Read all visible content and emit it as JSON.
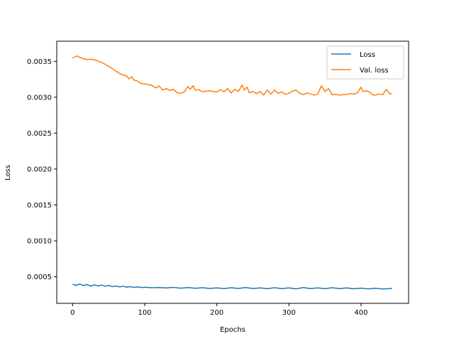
{
  "chart_data": {
    "type": "line",
    "title": "",
    "xlabel": "Epochs",
    "ylabel": "Loss",
    "xlim": [
      -22,
      466
    ],
    "ylim": [
      0.00013,
      0.00378
    ],
    "xticks": [
      0,
      100,
      200,
      300,
      400
    ],
    "xtick_labels": [
      "0",
      "100",
      "200",
      "300",
      "400"
    ],
    "yticks": [
      0.0005,
      0.001,
      0.0015,
      0.002,
      0.0025,
      0.003,
      0.0035
    ],
    "ytick_labels": [
      "0.0005",
      "0.0010",
      "0.0015",
      "0.0020",
      "0.0025",
      "0.0030",
      "0.0035"
    ],
    "grid": false,
    "legend_position": "top-right",
    "series": [
      {
        "name": "Loss",
        "color": "#1f77b4",
        "x": [
          0,
          5,
          10,
          15,
          20,
          25,
          30,
          35,
          40,
          45,
          50,
          55,
          60,
          65,
          70,
          75,
          80,
          85,
          90,
          95,
          100,
          110,
          120,
          130,
          140,
          150,
          160,
          170,
          180,
          190,
          200,
          210,
          220,
          230,
          240,
          250,
          260,
          270,
          280,
          290,
          300,
          310,
          320,
          330,
          340,
          350,
          360,
          370,
          380,
          390,
          400,
          410,
          420,
          430,
          443
        ],
        "y": [
          0.000395,
          0.00038,
          0.0004,
          0.000378,
          0.000392,
          0.00037,
          0.000388,
          0.000372,
          0.000385,
          0.000368,
          0.00038,
          0.000362,
          0.000372,
          0.000358,
          0.000368,
          0.000355,
          0.000362,
          0.000352,
          0.00036,
          0.00035,
          0.000355,
          0.000348,
          0.00035,
          0.000345,
          0.000352,
          0.000342,
          0.00035,
          0.00034,
          0.000348,
          0.000338,
          0.000345,
          0.000335,
          0.000348,
          0.000338,
          0.00035,
          0.000336,
          0.000345,
          0.000334,
          0.000348,
          0.000335,
          0.000345,
          0.000332,
          0.00035,
          0.000335,
          0.000345,
          0.000334,
          0.000348,
          0.000335,
          0.000345,
          0.000333,
          0.000342,
          0.000332,
          0.00034,
          0.00033,
          0.000338
        ]
      },
      {
        "name": "Val. loss",
        "color": "#ff7f0e",
        "x": [
          0,
          3,
          6,
          10,
          15,
          20,
          25,
          30,
          35,
          40,
          45,
          50,
          55,
          60,
          65,
          70,
          75,
          78,
          82,
          85,
          90,
          95,
          100,
          105,
          110,
          115,
          120,
          125,
          130,
          135,
          140,
          145,
          150,
          155,
          160,
          163,
          167,
          170,
          175,
          180,
          185,
          190,
          195,
          200,
          205,
          210,
          215,
          220,
          225,
          230,
          235,
          238,
          242,
          245,
          250,
          255,
          260,
          265,
          270,
          275,
          280,
          285,
          290,
          295,
          300,
          305,
          310,
          315,
          320,
          325,
          330,
          335,
          340,
          345,
          350,
          355,
          360,
          365,
          370,
          375,
          380,
          385,
          390,
          395,
          400,
          403,
          408,
          412,
          416,
          420,
          425,
          430,
          435,
          440,
          443
        ],
        "y": [
          0.003545,
          0.00356,
          0.003575,
          0.003555,
          0.003535,
          0.003525,
          0.00353,
          0.00352,
          0.003505,
          0.003485,
          0.00346,
          0.00343,
          0.0034,
          0.003365,
          0.00333,
          0.00331,
          0.003295,
          0.003255,
          0.003285,
          0.00324,
          0.003225,
          0.00319,
          0.003185,
          0.003175,
          0.003165,
          0.00313,
          0.003155,
          0.0031,
          0.00312,
          0.003095,
          0.00311,
          0.00306,
          0.003055,
          0.003075,
          0.00315,
          0.00311,
          0.00316,
          0.0031,
          0.003105,
          0.003075,
          0.003085,
          0.00309,
          0.00308,
          0.00307,
          0.003105,
          0.003075,
          0.00312,
          0.00306,
          0.00311,
          0.00308,
          0.00317,
          0.0031,
          0.00314,
          0.00306,
          0.00308,
          0.00305,
          0.00308,
          0.00303,
          0.0031,
          0.003045,
          0.0031,
          0.003055,
          0.003075,
          0.00304,
          0.003055,
          0.003085,
          0.0031,
          0.003055,
          0.003035,
          0.00306,
          0.003045,
          0.00303,
          0.00304,
          0.00316,
          0.00308,
          0.00312,
          0.003035,
          0.00304,
          0.00303,
          0.003035,
          0.00304,
          0.00305,
          0.003045,
          0.00306,
          0.00314,
          0.00308,
          0.00309,
          0.00307,
          0.003035,
          0.00303,
          0.003045,
          0.003035,
          0.00311,
          0.003045,
          0.003055
        ]
      }
    ]
  }
}
